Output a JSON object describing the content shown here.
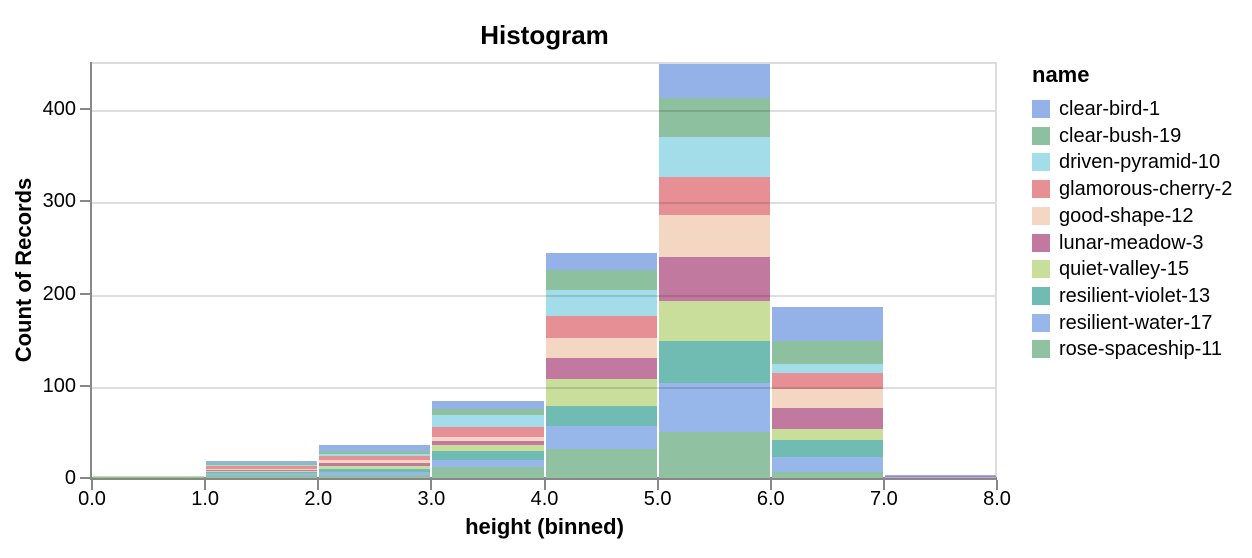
{
  "chart_data": {
    "type": "bar",
    "subtype": "stacked-histogram",
    "title": "Histogram",
    "xlabel": "height (binned)",
    "ylabel": "Count of Records",
    "legend_title": "name",
    "legend_position": "right",
    "grid": true,
    "background_color": "#ffffff",
    "axis_color": "#888888",
    "grid_color": "#dddddd",
    "text_color": "#000000",
    "xlim": [
      0,
      8
    ],
    "ylim": [
      0,
      451
    ],
    "x_tick_labels": [
      "0.0",
      "1.0",
      "2.0",
      "3.0",
      "4.0",
      "5.0",
      "6.0",
      "7.0",
      "8.0"
    ],
    "y_tick_values": [
      0,
      100,
      200,
      300,
      400
    ],
    "bin_starts": [
      0,
      1,
      2,
      3,
      4,
      5,
      6,
      7
    ],
    "bin_width": 1,
    "bin_totals": [
      2,
      18,
      36,
      84,
      244,
      449,
      185,
      3
    ],
    "stack_order_bottom_to_top": [
      "rose-spaceship-11",
      "resilient-water-17",
      "resilient-violet-13",
      "quiet-valley-15",
      "lunar-meadow-3",
      "good-shape-12",
      "glamorous-cherry-2",
      "driven-pyramid-10",
      "clear-bush-19",
      "clear-bird-1"
    ],
    "series": [
      {
        "name": "clear-bird-1",
        "color": "#94b1e8",
        "values": [
          0,
          2,
          7,
          9,
          18,
          37,
          36,
          1
        ]
      },
      {
        "name": "clear-bush-19",
        "color": "#8dc09f",
        "values": [
          0,
          2,
          3,
          7,
          22,
          42,
          25,
          0
        ]
      },
      {
        "name": "driven-pyramid-10",
        "color": "#a3dde9",
        "values": [
          0,
          1,
          2,
          13,
          28,
          44,
          10,
          0
        ]
      },
      {
        "name": "glamorous-cherry-2",
        "color": "#e69095",
        "values": [
          0,
          3,
          5,
          10,
          24,
          41,
          17,
          0
        ]
      },
      {
        "name": "good-shape-12",
        "color": "#f4d7c3",
        "values": [
          0,
          1,
          3,
          5,
          22,
          45,
          21,
          0
        ]
      },
      {
        "name": "lunar-meadow-3",
        "color": "#c2799f",
        "values": [
          0,
          1,
          3,
          4,
          23,
          48,
          23,
          1
        ]
      },
      {
        "name": "quiet-valley-15",
        "color": "#c9de9b",
        "values": [
          1,
          1,
          3,
          7,
          29,
          43,
          12,
          0
        ]
      },
      {
        "name": "resilient-violet-13",
        "color": "#70bcb3",
        "values": [
          0,
          2,
          4,
          10,
          22,
          46,
          18,
          0
        ]
      },
      {
        "name": "resilient-water-17",
        "color": "#97b6e9",
        "values": [
          0,
          2,
          3,
          7,
          25,
          53,
          16,
          1
        ]
      },
      {
        "name": "rose-spaceship-11",
        "color": "#90c2a2",
        "values": [
          1,
          3,
          3,
          12,
          31,
          50,
          7,
          0
        ]
      }
    ]
  }
}
